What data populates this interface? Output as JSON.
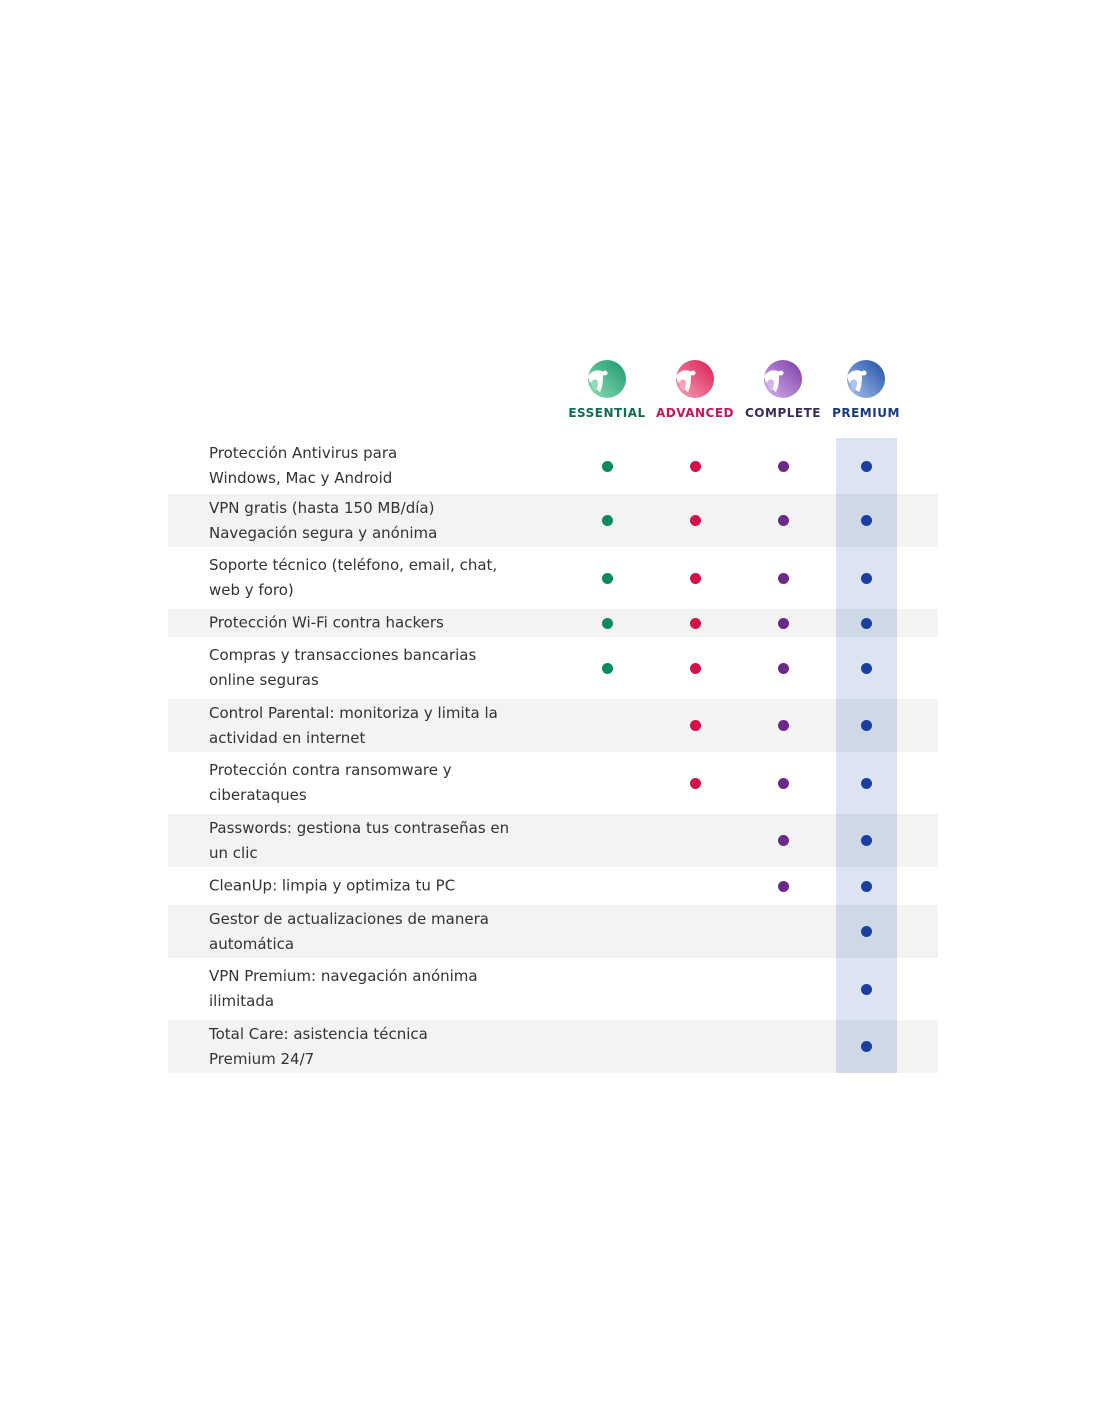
{
  "plans": [
    {
      "name": "ESSENTIAL",
      "label_color": "#0f6b55",
      "dot_color": "#0b8a5c",
      "logo_colors": [
        "#8fdcb8",
        "#1a9a6a"
      ],
      "icon": "essential-logo-icon"
    },
    {
      "name": "ADVANCED",
      "label_color": "#c2185b",
      "dot_color": "#d3104a",
      "logo_colors": [
        "#f7a3b8",
        "#d81b50"
      ],
      "icon": "advanced-logo-icon"
    },
    {
      "name": "COMPLETE",
      "label_color": "#3b2a5c",
      "dot_color": "#6b2a8a",
      "logo_colors": [
        "#d7b3ec",
        "#7b3aa8"
      ],
      "icon": "complete-logo-icon"
    },
    {
      "name": "PREMIUM",
      "label_color": "#1a3a80",
      "dot_color": "#1a3fa0",
      "logo_colors": [
        "#a9c3ec",
        "#1f4fa8"
      ],
      "icon": "premium-logo-icon"
    }
  ],
  "features": [
    {
      "lines": [
        "Protección Antivirus para",
        "Windows, Mac y Android"
      ],
      "included": [
        true,
        true,
        true,
        true
      ]
    },
    {
      "lines": [
        "VPN gratis (hasta 150 MB/día)",
        "Navegación segura y anónima"
      ],
      "included": [
        true,
        true,
        true,
        true
      ]
    },
    {
      "lines": [
        "Soporte técnico (teléfono, email, chat,",
        "web y foro)"
      ],
      "included": [
        true,
        true,
        true,
        true
      ]
    },
    {
      "lines": [
        "Protección Wi-Fi contra hackers"
      ],
      "included": [
        true,
        true,
        true,
        true
      ]
    },
    {
      "lines": [
        "Compras y transacciones bancarias",
        "online seguras"
      ],
      "included": [
        true,
        true,
        true,
        true
      ]
    },
    {
      "lines": [
        "Control Parental: monitoriza y limita la",
        "actividad en internet"
      ],
      "included": [
        false,
        true,
        true,
        true
      ]
    },
    {
      "lines": [
        "Protección contra ransomware y",
        "ciberataques"
      ],
      "included": [
        false,
        true,
        true,
        true
      ]
    },
    {
      "lines": [
        "Passwords: gestiona tus contraseñas en",
        "un clic"
      ],
      "included": [
        false,
        false,
        true,
        true
      ]
    },
    {
      "lines": [
        "CleanUp: limpia y optimiza tu PC"
      ],
      "included": [
        false,
        false,
        true,
        true
      ]
    },
    {
      "lines": [
        "Gestor de actualizaciones de manera",
        "automática"
      ],
      "included": [
        false,
        false,
        false,
        true
      ]
    },
    {
      "lines": [
        "VPN Premium: navegación anónima",
        "ilimitada"
      ],
      "included": [
        false,
        false,
        false,
        true
      ]
    },
    {
      "lines": [
        "Total Care: asistencia técnica",
        "Premium 24/7"
      ],
      "included": [
        false,
        false,
        false,
        true
      ]
    }
  ],
  "highlight_color": "#dbe4f0"
}
